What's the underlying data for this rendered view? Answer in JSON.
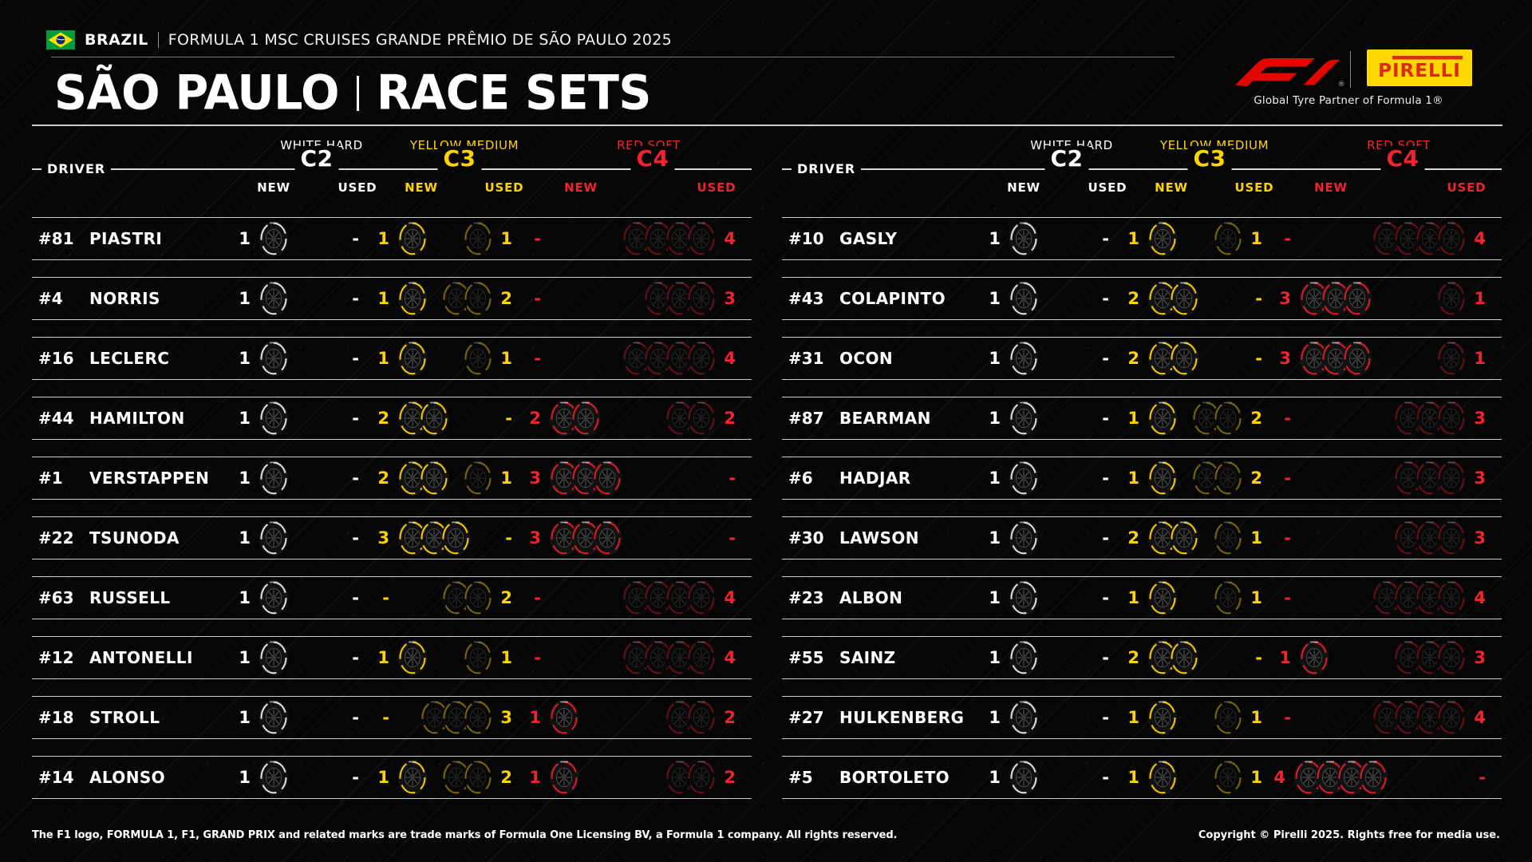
{
  "header": {
    "country": "BRAZIL",
    "event": "FORMULA 1 MSC CRUISES GRANDE PRÊMIO DE SÃO PAULO 2025",
    "title_left": "SÃO PAULO",
    "title_right": "RACE SETS",
    "f1_logo": "F1",
    "pirelli_logo_text": "PIRELLI",
    "partner": "Global Tyre Partner of Formula 1®",
    "flag": "brazil-flag"
  },
  "labels": {
    "driver": "DRIVER",
    "new": "NEW",
    "used": "USED",
    "dash": "-"
  },
  "colors": {
    "accent_red": "#e10600",
    "pirelli_yellow": "#ffd800",
    "pirelli_red": "#d92a1c",
    "line": "#ffffff"
  },
  "chart_data": {
    "type": "table",
    "title": "SÃO PAULO | RACE SETS",
    "sub_columns": [
      "NEW",
      "USED"
    ],
    "compounds": [
      {
        "key": "c2",
        "name": "WHITE HARD",
        "code": "C2",
        "color": "#ffffff",
        "ring": "#e9e9e9"
      },
      {
        "key": "c3",
        "name": "YELLOW MEDIUM",
        "code": "C3",
        "color": "#ffd300",
        "ring": "#ffd300"
      },
      {
        "key": "c4",
        "name": "RED SOFT",
        "code": "C4",
        "color": "#f1232e",
        "ring": "#e51c2a"
      }
    ],
    "tables": [
      {
        "rows": [
          {
            "number": "#81",
            "name": "PIASTRI",
            "c2": [
              1,
              0
            ],
            "c3": [
              1,
              1
            ],
            "c4": [
              0,
              4
            ]
          },
          {
            "number": "#4",
            "name": "NORRIS",
            "c2": [
              1,
              0
            ],
            "c3": [
              1,
              2
            ],
            "c4": [
              0,
              3
            ]
          },
          {
            "number": "#16",
            "name": "LECLERC",
            "c2": [
              1,
              0
            ],
            "c3": [
              1,
              1
            ],
            "c4": [
              0,
              4
            ]
          },
          {
            "number": "#44",
            "name": "HAMILTON",
            "c2": [
              1,
              0
            ],
            "c3": [
              2,
              0
            ],
            "c4": [
              2,
              2
            ]
          },
          {
            "number": "#1",
            "name": "VERSTAPPEN",
            "c2": [
              1,
              0
            ],
            "c3": [
              2,
              1
            ],
            "c4": [
              3,
              0
            ]
          },
          {
            "number": "#22",
            "name": "TSUNODA",
            "c2": [
              1,
              0
            ],
            "c3": [
              3,
              0
            ],
            "c4": [
              3,
              0
            ]
          },
          {
            "number": "#63",
            "name": "RUSSELL",
            "c2": [
              1,
              0
            ],
            "c3": [
              0,
              2
            ],
            "c4": [
              0,
              4
            ]
          },
          {
            "number": "#12",
            "name": "ANTONELLI",
            "c2": [
              1,
              0
            ],
            "c3": [
              1,
              1
            ],
            "c4": [
              0,
              4
            ]
          },
          {
            "number": "#18",
            "name": "STROLL",
            "c2": [
              1,
              0
            ],
            "c3": [
              0,
              3
            ],
            "c4": [
              1,
              2
            ]
          },
          {
            "number": "#14",
            "name": "ALONSO",
            "c2": [
              1,
              0
            ],
            "c3": [
              1,
              2
            ],
            "c4": [
              1,
              2
            ]
          }
        ]
      },
      {
        "rows": [
          {
            "number": "#10",
            "name": "GASLY",
            "c2": [
              1,
              0
            ],
            "c3": [
              1,
              1
            ],
            "c4": [
              0,
              4
            ]
          },
          {
            "number": "#43",
            "name": "COLAPINTO",
            "c2": [
              1,
              0
            ],
            "c3": [
              2,
              0
            ],
            "c4": [
              3,
              1
            ]
          },
          {
            "number": "#31",
            "name": "OCON",
            "c2": [
              1,
              0
            ],
            "c3": [
              2,
              0
            ],
            "c4": [
              3,
              1
            ]
          },
          {
            "number": "#87",
            "name": "BEARMAN",
            "c2": [
              1,
              0
            ],
            "c3": [
              1,
              2
            ],
            "c4": [
              0,
              3
            ]
          },
          {
            "number": "#6",
            "name": "HADJAR",
            "c2": [
              1,
              0
            ],
            "c3": [
              1,
              2
            ],
            "c4": [
              0,
              3
            ]
          },
          {
            "number": "#30",
            "name": "LAWSON",
            "c2": [
              1,
              0
            ],
            "c3": [
              2,
              1
            ],
            "c4": [
              0,
              3
            ]
          },
          {
            "number": "#23",
            "name": "ALBON",
            "c2": [
              1,
              0
            ],
            "c3": [
              1,
              1
            ],
            "c4": [
              0,
              4
            ]
          },
          {
            "number": "#55",
            "name": "SAINZ",
            "c2": [
              1,
              0
            ],
            "c3": [
              2,
              0
            ],
            "c4": [
              1,
              3
            ]
          },
          {
            "number": "#27",
            "name": "HULKENBERG",
            "c2": [
              1,
              0
            ],
            "c3": [
              1,
              1
            ],
            "c4": [
              0,
              4
            ]
          },
          {
            "number": "#5",
            "name": "BORTOLETO",
            "c2": [
              1,
              0
            ],
            "c3": [
              1,
              1
            ],
            "c4": [
              4,
              0
            ]
          }
        ]
      }
    ]
  },
  "footer": {
    "left": "The F1 logo, FORMULA 1, F1, GRAND PRIX and related marks are trade marks of Formula One Licensing BV, a Formula 1 company. All rights reserved.",
    "right": "Copyright © Pirelli 2025. Rights free for media use."
  }
}
